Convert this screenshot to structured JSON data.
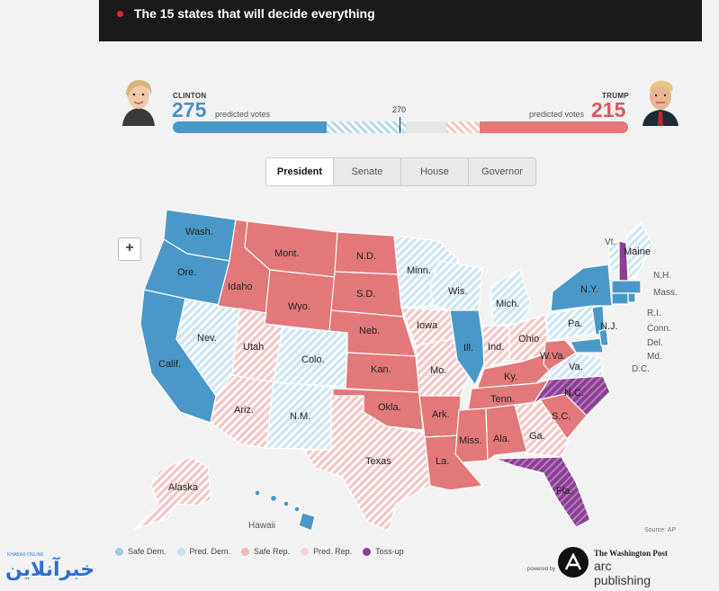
{
  "header": {
    "headline": "The 15 states that will decide everything"
  },
  "clinton": {
    "name": "CLINTON",
    "votes": "275",
    "sub": "predicted votes",
    "color": "#4a90c2"
  },
  "trump": {
    "name": "TRUMP",
    "votes": "215",
    "sub": "predicted votes",
    "color": "#d9575b"
  },
  "bar": {
    "threshold_label": "270",
    "total": 538,
    "segments": [
      {
        "name": "safe-dem",
        "votes": 182,
        "color": "#4a98c8"
      },
      {
        "name": "pred-dem",
        "votes": 93,
        "color": "#c5dfee"
      },
      {
        "name": "toss-up",
        "votes": 48,
        "color": "#e6e6e6"
      },
      {
        "name": "pred-rep",
        "votes": 40,
        "color": "#f5d5d5"
      },
      {
        "name": "safe-rep",
        "votes": 175,
        "color": "#e2787a"
      }
    ]
  },
  "tabs": [
    "President",
    "Senate",
    "House",
    "Governor"
  ],
  "active_tab": "President",
  "zoom_label": "+",
  "colors": {
    "safe_dem": "#4a98c8",
    "pred_dem": "#a8d0e6",
    "safe_rep": "#e2787a",
    "pred_rep": "#f2c4c4",
    "toss_up": "#8b3f93"
  },
  "states": {
    "wash": "Wash.",
    "ore": "Ore.",
    "calif": "Calif.",
    "nev": "Nev.",
    "idaho": "Idaho",
    "mont": "Mont.",
    "wyo": "Wyo.",
    "utah": "Utah",
    "colo": "Colo.",
    "ariz": "Ariz.",
    "nm": "N.M.",
    "nd": "N.D.",
    "sd": "S.D.",
    "neb": "Neb.",
    "kan": "Kan.",
    "okla": "Okla.",
    "texas": "Texas",
    "minn": "Minn.",
    "iowa": "Iowa",
    "mo": "Mo.",
    "ark": "Ark.",
    "la": "La.",
    "wis": "Wis.",
    "ill": "Ill.",
    "mich": "Mich.",
    "ind": "Ind.",
    "ohio": "Ohio",
    "ky": "Ky.",
    "tenn": "Tenn.",
    "miss": "Miss.",
    "ala": "Ala.",
    "ga": "Ga.",
    "fla": "Fla.",
    "sc": "S.C.",
    "nc": "N.C.",
    "va": "Va.",
    "wva": "W.Va.",
    "pa": "Pa.",
    "ny": "N.Y.",
    "vt": "Vt.",
    "maine": "Maine",
    "nh": "N.H.",
    "mass": "Mass.",
    "ri": "R.I.",
    "conn": "Conn.",
    "nj": "N.J.",
    "del": "Del.",
    "md": "Md.",
    "dc": "D.C.",
    "alaska": "Alaska",
    "hawaii": "Hawaii"
  },
  "legend": [
    {
      "label": "Safe Dem.",
      "color": "#9fcbe3"
    },
    {
      "label": "Pred. Dem.",
      "color": "#c6e2f0"
    },
    {
      "label": "Safe Rep.",
      "color": "#f0b9b9"
    },
    {
      "label": "Pred. Rep.",
      "color": "#f6d3d3"
    },
    {
      "label": "Toss-up",
      "color": "#8b3f93"
    }
  ],
  "source": "Source: AP",
  "branding": {
    "powered": "powered by",
    "paper": "The Washington Post",
    "arc": "arc publishing"
  },
  "watermark": {
    "small": "KHABAR ONLINE",
    "big": "خبرآنلاین"
  }
}
